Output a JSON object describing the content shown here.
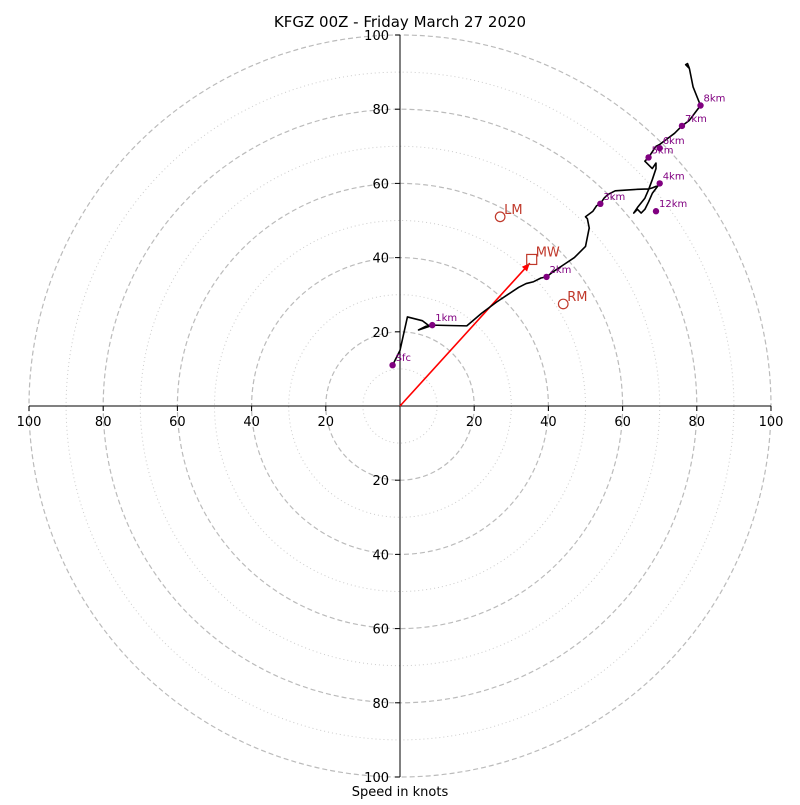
{
  "chart_data": {
    "type": "scatter",
    "title": "KFGZ 00Z - Friday March 27 2020",
    "xlabel": "Speed in knots",
    "ylabel": "",
    "xlim": [
      -100,
      100
    ],
    "ylim": [
      -100,
      100
    ],
    "tick_labels": [
      "100",
      "80",
      "60",
      "40",
      "20",
      "20",
      "40",
      "60",
      "80",
      "100"
    ],
    "tick_values": [
      -100,
      -80,
      -60,
      -40,
      -20,
      20,
      40,
      60,
      80,
      100
    ],
    "range_rings_dashed": [
      20,
      40,
      60,
      80,
      100
    ],
    "range_rings_dotted": [
      10,
      30,
      50,
      70,
      90
    ],
    "grid": true,
    "colors": {
      "hodograph": "#000000",
      "height_markers": "#800080",
      "motion_markers": "#c0392b",
      "mean_wind_vector": "#ff0000",
      "rings": "#bbbbbb",
      "axes": "#000000"
    },
    "hodograph": {
      "x": [
        -2,
        0,
        2,
        6,
        8,
        5,
        7,
        8.7,
        13,
        18,
        22,
        26,
        29,
        32,
        34,
        36,
        38,
        39.5,
        41,
        44,
        47,
        50,
        51,
        50.5,
        50,
        52,
        53,
        54,
        55,
        56,
        58,
        61,
        64,
        67,
        68,
        69,
        69.5,
        68,
        67,
        66,
        65,
        64,
        63,
        64,
        66,
        67,
        68,
        69,
        69,
        68,
        66,
        67,
        68,
        69,
        70,
        72,
        74,
        76,
        78,
        79.5,
        81,
        79,
        78,
        77,
        77.5,
        78
      ],
      "y": [
        11,
        15,
        24,
        23,
        21.5,
        20.5,
        21.5,
        21.8,
        21.7,
        21.6,
        25,
        28,
        30,
        32,
        33,
        33.5,
        34.5,
        34.8,
        36,
        38,
        40,
        43,
        48,
        50.5,
        51,
        52.5,
        54,
        54.5,
        56,
        57,
        58,
        58.2,
        58.4,
        58.5,
        58.8,
        59.2,
        59.3,
        57.3,
        55,
        53,
        52,
        53,
        52,
        53.5,
        56,
        58.3,
        61,
        64,
        65.5,
        64,
        66,
        67,
        68.5,
        70,
        70.5,
        72,
        73.5,
        75.5,
        77,
        79,
        81,
        86,
        91,
        92,
        92.3,
        91
      ]
    },
    "height_markers": [
      {
        "label": "Sfc",
        "x": -2,
        "y": 11
      },
      {
        "label": "1km",
        "x": 8.7,
        "y": 21.8
      },
      {
        "label": "2km",
        "x": 39.5,
        "y": 34.8
      },
      {
        "label": "3km",
        "x": 54,
        "y": 54.5
      },
      {
        "label": "4km",
        "x": 70,
        "y": 60
      },
      {
        "label": "5km",
        "x": 67,
        "y": 67
      },
      {
        "label": "6km",
        "x": 70,
        "y": 69.5
      },
      {
        "label": "7km",
        "x": 76,
        "y": 75.5
      },
      {
        "label": "8km",
        "x": 81,
        "y": 81
      },
      {
        "label": "12km",
        "x": 69,
        "y": 52.5
      }
    ],
    "storm_motions": [
      {
        "label": "LM",
        "x": 27,
        "y": 51,
        "marker": "circle"
      },
      {
        "label": "MW",
        "x": 35.5,
        "y": 39.5,
        "marker": "square"
      },
      {
        "label": "RM",
        "x": 44,
        "y": 27.5,
        "marker": "circle"
      }
    ],
    "mean_wind_arrow": {
      "x": 35,
      "y": 38.5
    }
  }
}
